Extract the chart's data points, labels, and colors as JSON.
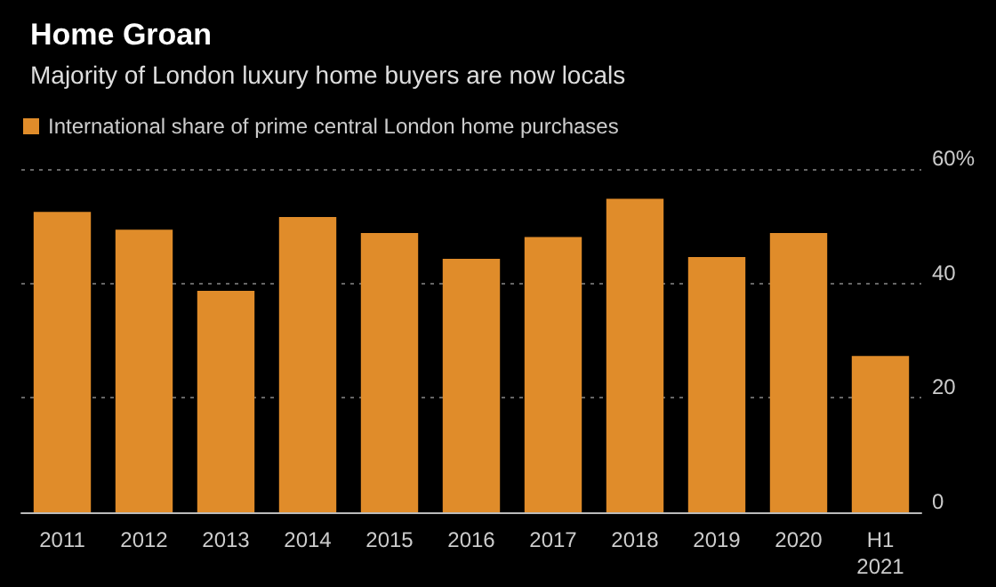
{
  "chart_data": {
    "type": "bar",
    "title": "Home Groan",
    "subtitle": "Majority of London luxury home buyers are now locals",
    "categories": [
      "2011",
      "2012",
      "2013",
      "2014",
      "2015",
      "2016",
      "2017",
      "2018",
      "2019",
      "2020",
      "H1\n2021"
    ],
    "series": [
      {
        "name": "International share of prime central London home purchases",
        "color": "#e08c2a",
        "values": [
          52.5,
          49.4,
          38.7,
          51.6,
          48.8,
          44.3,
          48.1,
          54.8,
          44.6,
          48.8,
          27.3
        ]
      }
    ],
    "ylim": [
      0,
      60
    ],
    "yticks": [
      0,
      20,
      40,
      {
        "value": 60,
        "label": "60%"
      }
    ],
    "grid": "y",
    "legend": "top left"
  }
}
